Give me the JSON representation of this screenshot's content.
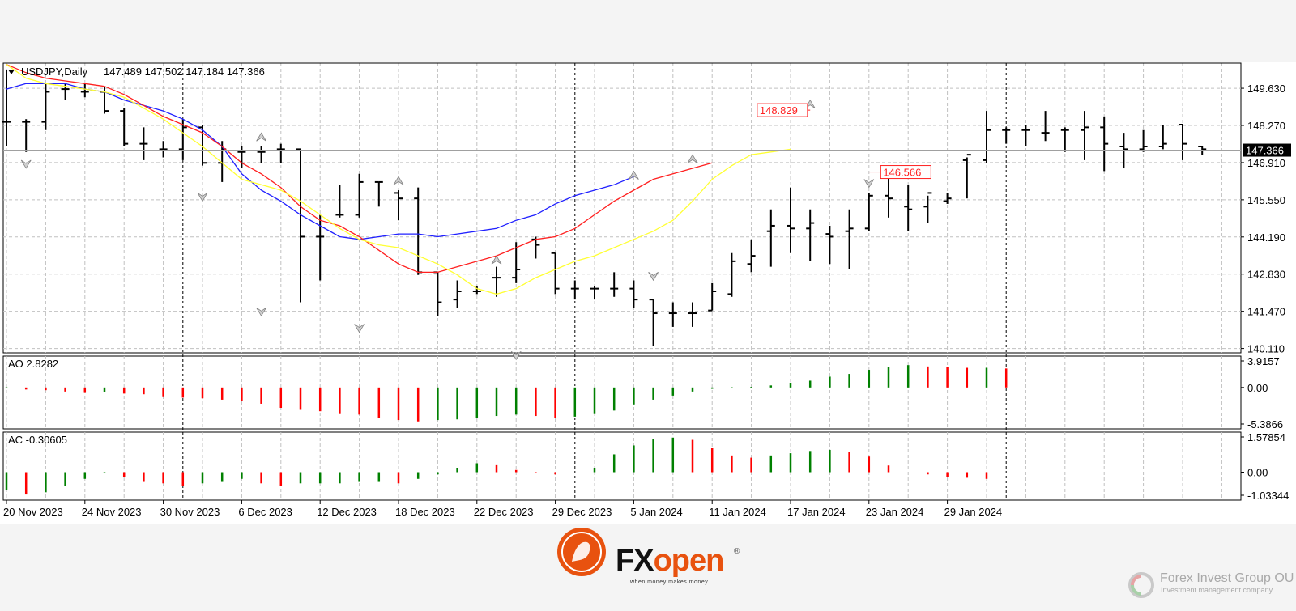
{
  "chart_data": {
    "type": "ohlc",
    "symbol_label": "USDJPY,Daily",
    "header_ohlc": "147.489 147.502 147.184 147.366",
    "current_price": 147.366,
    "ylim": [
      140.11,
      150.5
    ],
    "y_ticks": [
      "149.630",
      "148.270",
      "146.910",
      "145.550",
      "144.190",
      "142.830",
      "141.470",
      "140.110"
    ],
    "x_ticks": [
      "20 Nov 2023",
      "24 Nov 2023",
      "30 Nov 2023",
      "6 Dec 2023",
      "12 Dec 2023",
      "18 Dec 2023",
      "22 Dec 2023",
      "29 Dec 2023",
      "5 Jan 2024",
      "11 Jan 2024",
      "17 Jan 2024",
      "23 Jan 2024",
      "29 Jan 2024"
    ],
    "x_tick_bar_index": [
      0,
      4,
      8,
      12,
      16,
      20,
      24,
      28,
      32,
      36,
      40,
      44,
      48
    ],
    "bars": [
      {
        "o": 148.4,
        "h": 150.3,
        "l": 147.5,
        "c": 148.4
      },
      {
        "o": 148.4,
        "h": 148.5,
        "l": 147.3,
        "c": 148.4
      },
      {
        "o": 148.4,
        "h": 149.8,
        "l": 148.1,
        "c": 149.5
      },
      {
        "o": 149.6,
        "h": 149.8,
        "l": 149.2,
        "c": 149.6
      },
      {
        "o": 149.5,
        "h": 149.8,
        "l": 149.3,
        "c": 149.5
      },
      {
        "o": 149.5,
        "h": 149.7,
        "l": 148.7,
        "c": 148.8
      },
      {
        "o": 148.8,
        "h": 148.9,
        "l": 147.5,
        "c": 147.6
      },
      {
        "o": 147.6,
        "h": 148.2,
        "l": 147.0,
        "c": 147.6
      },
      {
        "o": 147.4,
        "h": 147.7,
        "l": 147.1,
        "c": 147.4
      },
      {
        "o": 147.4,
        "h": 148.5,
        "l": 147.0,
        "c": 148.2
      },
      {
        "o": 148.2,
        "h": 148.3,
        "l": 146.8,
        "c": 146.9
      },
      {
        "o": 146.9,
        "h": 147.7,
        "l": 146.2,
        "c": 147.4
      },
      {
        "o": 147.3,
        "h": 147.5,
        "l": 146.7,
        "c": 147.3
      },
      {
        "o": 147.3,
        "h": 147.5,
        "l": 146.9,
        "c": 147.3
      },
      {
        "o": 147.4,
        "h": 147.6,
        "l": 146.9,
        "c": 147.4
      },
      {
        "o": 147.4,
        "h": 147.4,
        "l": 141.8,
        "c": 144.2
      },
      {
        "o": 144.2,
        "h": 145.0,
        "l": 142.6,
        "c": 144.2
      },
      {
        "o": 145.0,
        "h": 146.1,
        "l": 144.9,
        "c": 145.0
      },
      {
        "o": 145.0,
        "h": 146.5,
        "l": 144.9,
        "c": 146.2
      },
      {
        "o": 146.2,
        "h": 146.2,
        "l": 145.3,
        "c": 146.2
      },
      {
        "o": 145.8,
        "h": 145.9,
        "l": 144.8,
        "c": 145.6
      },
      {
        "o": 145.6,
        "h": 146.0,
        "l": 142.8,
        "c": 142.9
      },
      {
        "o": 142.9,
        "h": 142.9,
        "l": 141.3,
        "c": 141.8
      },
      {
        "o": 141.9,
        "h": 142.6,
        "l": 141.6,
        "c": 142.2
      },
      {
        "o": 142.2,
        "h": 142.4,
        "l": 142.1,
        "c": 142.2
      },
      {
        "o": 142.7,
        "h": 143.1,
        "l": 142.0,
        "c": 142.7
      },
      {
        "o": 142.7,
        "h": 144.0,
        "l": 142.5,
        "c": 143.0
      },
      {
        "o": 144.1,
        "h": 144.2,
        "l": 143.4,
        "c": 143.9
      },
      {
        "o": 143.6,
        "h": 143.6,
        "l": 142.1,
        "c": 142.3
      },
      {
        "o": 142.3,
        "h": 142.6,
        "l": 141.9,
        "c": 142.3
      },
      {
        "o": 142.3,
        "h": 142.4,
        "l": 141.9,
        "c": 142.3
      },
      {
        "o": 142.3,
        "h": 142.9,
        "l": 142.0,
        "c": 142.3
      },
      {
        "o": 142.3,
        "h": 142.6,
        "l": 141.6,
        "c": 141.9
      },
      {
        "o": 141.9,
        "h": 141.9,
        "l": 140.2,
        "c": 141.4
      },
      {
        "o": 141.4,
        "h": 141.8,
        "l": 140.9,
        "c": 141.4
      },
      {
        "o": 141.4,
        "h": 141.8,
        "l": 140.9,
        "c": 141.4
      },
      {
        "o": 141.5,
        "h": 142.5,
        "l": 141.5,
        "c": 142.2
      }
    ],
    "bars_right": [
      {
        "o": 142.1,
        "h": 143.6,
        "l": 142.0,
        "c": 143.3
      },
      {
        "o": 143.2,
        "h": 144.1,
        "l": 142.9,
        "c": 143.5
      },
      {
        "o": 144.4,
        "h": 145.2,
        "l": 143.1,
        "c": 144.6
      },
      {
        "o": 144.6,
        "h": 146.0,
        "l": 143.6,
        "c": 144.5
      },
      {
        "o": 144.5,
        "h": 145.2,
        "l": 143.3,
        "c": 144.7
      },
      {
        "o": 144.3,
        "h": 144.6,
        "l": 143.2,
        "c": 144.2
      },
      {
        "o": 144.4,
        "h": 145.2,
        "l": 143.0,
        "c": 144.5
      },
      {
        "o": 144.5,
        "h": 145.8,
        "l": 144.4,
        "c": 145.7
      },
      {
        "o": 145.7,
        "h": 146.8,
        "l": 144.9,
        "c": 145.6
      },
      {
        "o": 145.3,
        "h": 146.1,
        "l": 144.4,
        "c": 145.2
      },
      {
        "o": 145.3,
        "h": 145.7,
        "l": 144.7,
        "c": 145.8
      },
      {
        "o": 145.5,
        "h": 145.8,
        "l": 145.4,
        "c": 145.6
      },
      {
        "o": 147.0,
        "h": 147.1,
        "l": 145.6,
        "c": 147.2
      },
      {
        "o": 147.0,
        "h": 148.8,
        "l": 146.9,
        "c": 148.1
      },
      {
        "o": 148.1,
        "h": 148.2,
        "l": 147.6,
        "c": 148.1
      },
      {
        "o": 148.1,
        "h": 148.3,
        "l": 147.5,
        "c": 148.1
      },
      {
        "o": 148.0,
        "h": 148.8,
        "l": 147.7,
        "c": 148.0
      },
      {
        "o": 148.1,
        "h": 148.2,
        "l": 147.3,
        "c": 148.1
      },
      {
        "o": 148.1,
        "h": 148.8,
        "l": 147.0,
        "c": 148.2
      },
      {
        "o": 148.2,
        "h": 148.6,
        "l": 146.6,
        "c": 147.6
      },
      {
        "o": 147.5,
        "h": 148.0,
        "l": 146.7,
        "c": 147.4
      },
      {
        "o": 147.4,
        "h": 148.1,
        "l": 147.3,
        "c": 147.5
      },
      {
        "o": 147.5,
        "h": 148.3,
        "l": 147.4,
        "c": 147.6
      },
      {
        "o": 148.3,
        "h": 148.3,
        "l": 147.0,
        "c": 147.6
      },
      {
        "o": 147.5,
        "h": 147.5,
        "l": 147.2,
        "c": 147.4
      }
    ],
    "ma_yellow": [
      150.5,
      150.0,
      149.8,
      149.7,
      149.6,
      149.5,
      149.3,
      148.9,
      148.5,
      148.0,
      147.5,
      146.9,
      146.3,
      146.1,
      145.9,
      145.5,
      145.0,
      144.5,
      144.1,
      143.9,
      143.8,
      143.5,
      143.2,
      142.8,
      142.3,
      142.1,
      142.3,
      142.7,
      143.0,
      143.3,
      143.5,
      143.8,
      144.1,
      144.4,
      144.8,
      145.5,
      146.3,
      146.8,
      147.2,
      147.3,
      147.4
    ],
    "ma_red": [
      150.5,
      150.2,
      150.0,
      149.9,
      149.8,
      149.7,
      149.4,
      149.0,
      148.6,
      148.3,
      148.0,
      147.5,
      146.9,
      146.5,
      146.0,
      145.3,
      144.8,
      144.6,
      144.2,
      143.7,
      143.2,
      142.9,
      142.9,
      143.1,
      143.3,
      143.5,
      143.8,
      144.1,
      144.2,
      144.5,
      145.0,
      145.5,
      145.9,
      146.3,
      146.5,
      146.7,
      146.9
    ],
    "ma_blue": [
      149.6,
      149.8,
      149.8,
      149.8,
      149.6,
      149.5,
      149.2,
      149.0,
      148.8,
      148.5,
      148.1,
      147.5,
      146.5,
      145.9,
      145.5,
      145.0,
      144.6,
      144.2,
      144.1,
      144.2,
      144.3,
      144.3,
      144.2,
      144.3,
      144.4,
      144.5,
      144.8,
      145.0,
      145.4,
      145.7,
      145.9,
      146.1,
      146.4
    ],
    "labels": {
      "high_label": "148.829",
      "low_label": "146.566"
    },
    "ao": {
      "title": "AO 2.8282",
      "y_ticks": [
        "3.9157",
        "0.00",
        "-5.3866"
      ],
      "ylim": [
        -5.3866,
        3.9157
      ],
      "values": [
        0.05,
        -0.3,
        -0.4,
        -0.6,
        -0.8,
        -0.7,
        -0.9,
        -1.0,
        -1.3,
        -1.5,
        -1.6,
        -1.8,
        -2.0,
        -2.4,
        -3.0,
        -3.3,
        -3.5,
        -3.8,
        -4.0,
        -4.5,
        -4.8,
        -5.0,
        -4.8,
        -4.7,
        -4.5,
        -4.2,
        -4.0,
        -4.2,
        -4.5,
        -4.3,
        -3.8,
        -3.4,
        -2.5,
        -1.8,
        -1.2,
        -0.6,
        -0.2,
        0.05,
        0.1,
        0.3,
        0.7,
        1.0,
        1.6,
        2.0,
        2.6,
        3.0,
        3.3,
        3.1,
        3.0,
        2.9,
        2.9,
        2.8
      ],
      "colors": "green rising / red falling"
    },
    "ac": {
      "title": "AC -0.30605",
      "y_ticks": [
        "1.57854",
        "0.00",
        "-1.03344"
      ],
      "ylim": [
        -1.03344,
        1.57854
      ],
      "values": [
        -0.8,
        -1.0,
        -0.9,
        -0.6,
        -0.3,
        -0.05,
        -0.2,
        -0.4,
        -0.5,
        -0.6,
        -0.5,
        -0.4,
        -0.3,
        -0.5,
        -0.6,
        -0.5,
        -0.5,
        -0.5,
        -0.4,
        -0.4,
        -0.5,
        -0.3,
        -0.1,
        0.2,
        0.4,
        0.35,
        0.1,
        -0.05,
        -0.1,
        0.0,
        0.2,
        0.8,
        1.2,
        1.5,
        1.55,
        1.45,
        1.1,
        0.75,
        0.65,
        0.75,
        0.85,
        0.95,
        1.0,
        0.9,
        0.7,
        0.3,
        0.0,
        -0.1,
        -0.2,
        -0.25,
        -0.3
      ],
      "colors": "green rising / red falling"
    },
    "grid": true
  },
  "branding": {
    "fx_brand_a": "FX",
    "fx_brand_b": "open",
    "fx_tagline": "when money makes money",
    "firm_name": "Forex Invest Group OU",
    "firm_sub": "Investment management company"
  },
  "colors": {
    "bg": "#ffffff",
    "grid": "#c0c0c0",
    "up": "#008000",
    "down": "#ff0000",
    "ma_yellow": "#ffff33",
    "ma_red": "#ff2020",
    "ma_blue": "#2020ff",
    "brand_orange": "#e8520f"
  }
}
